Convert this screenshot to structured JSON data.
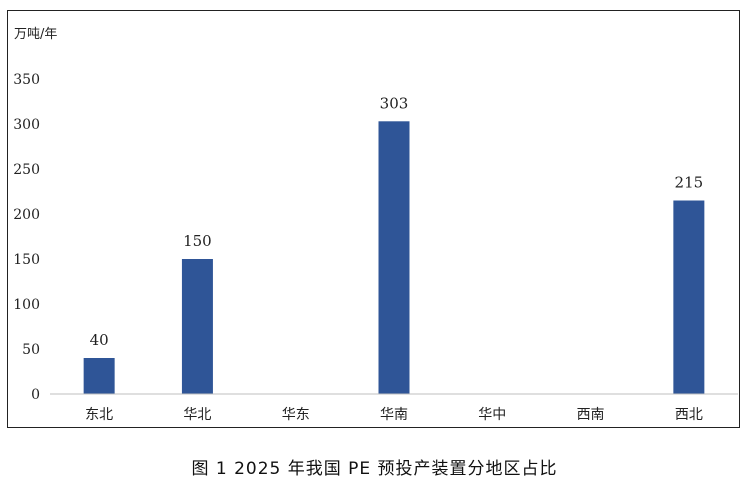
{
  "caption": "图 1  2025 年我国 PE 预投产装置分地区占比",
  "chart_data": {
    "type": "bar",
    "unit_label": "万吨/年",
    "categories": [
      "东北",
      "华北",
      "华东",
      "华南",
      "华中",
      "西南",
      "西北"
    ],
    "values": [
      40,
      150,
      0,
      303,
      0,
      0,
      215
    ],
    "data_labels": [
      "40",
      "150",
      "",
      "303",
      "",
      "",
      "215"
    ],
    "ylim": [
      0,
      350
    ],
    "yticks": [
      0,
      50,
      100,
      150,
      200,
      250,
      300,
      350
    ],
    "grid": false,
    "legend": "none",
    "bar_color": "#2F5597"
  }
}
